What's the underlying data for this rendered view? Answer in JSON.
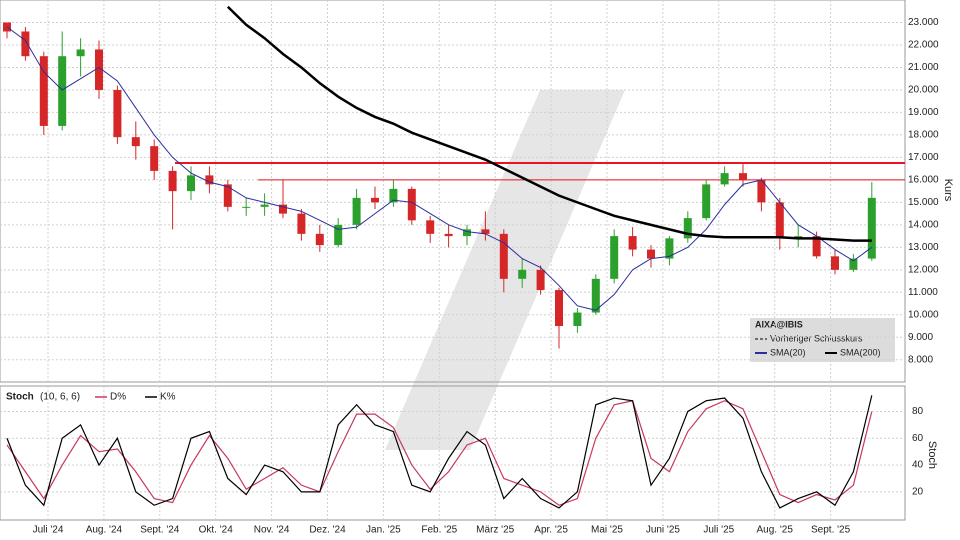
{
  "chart_data": [
    {
      "type": "candlestick",
      "ylabel": "Kurs",
      "ylim": [
        7.1,
        24
      ],
      "yticks": [
        {
          "value": 8,
          "label": "8.000"
        },
        {
          "value": 9,
          "label": "9.000"
        },
        {
          "value": 10,
          "label": "10.000"
        },
        {
          "value": 11,
          "label": "11.000"
        },
        {
          "value": 12,
          "label": "12.000"
        },
        {
          "value": 13,
          "label": "13.000"
        },
        {
          "value": 14,
          "label": "14.000"
        },
        {
          "value": 15,
          "label": "15.000"
        },
        {
          "value": 16,
          "label": "16.000"
        },
        {
          "value": 17,
          "label": "17.000"
        },
        {
          "value": 18,
          "label": "18.000"
        },
        {
          "value": 19,
          "label": "19.000"
        },
        {
          "value": 20,
          "label": "20.000"
        },
        {
          "value": 21,
          "label": "21.000"
        },
        {
          "value": 22,
          "label": "22.000"
        },
        {
          "value": 23,
          "label": "23.000"
        }
      ],
      "grid": true,
      "up_color": "#2ca02c",
      "down_color": "#d62728",
      "open": [
        23,
        22.6,
        21.5,
        18.4,
        21.5,
        21.8,
        20.0,
        17.9,
        17.5,
        16.4,
        15.5,
        16.2,
        15.8,
        14.8,
        14.8,
        14.9,
        14.5,
        13.6,
        13.1,
        14.0,
        15.2,
        15.0,
        15.6,
        14.2,
        13.6,
        13.5,
        13.8,
        13.6,
        11.6,
        12.0,
        11.1,
        9.5,
        10.1,
        11.6,
        13.5,
        12.9,
        12.5,
        13.4,
        14.3,
        15.8,
        16.3,
        16.0,
        15.0,
        13.4,
        13.5,
        12.6,
        12.0,
        12.5
      ],
      "high": [
        23,
        22.8,
        21.7,
        22.6,
        22.3,
        22.2,
        20.2,
        18.6,
        17.8,
        16.6,
        16.6,
        16.6,
        16.0,
        15.2,
        15.4,
        16.0,
        14.7,
        14.0,
        14.3,
        15.6,
        15.7,
        16.0,
        15.7,
        14.4,
        14.0,
        14.0,
        14.6,
        13.8,
        12.5,
        12.2,
        11.2,
        10.3,
        11.8,
        13.8,
        13.9,
        13.1,
        13.5,
        14.6,
        16.0,
        16.6,
        16.7,
        16.1,
        15.2,
        14.0,
        13.7,
        12.9,
        12.7,
        15.9
      ],
      "low": [
        22.3,
        21.3,
        18.0,
        18.2,
        20.6,
        19.6,
        17.6,
        16.9,
        16.0,
        13.8,
        15.1,
        15.4,
        14.6,
        14.4,
        14.4,
        14.3,
        13.3,
        12.8,
        13.0,
        13.8,
        14.7,
        14.8,
        14.0,
        13.2,
        13.0,
        13.1,
        13.3,
        11.0,
        11.2,
        10.9,
        8.5,
        9.2,
        10.0,
        11.4,
        12.6,
        12.1,
        12.2,
        13.2,
        14.2,
        15.7,
        15.7,
        14.6,
        12.9,
        13.0,
        12.5,
        11.8,
        11.9,
        12.4
      ],
      "close": [
        22.6,
        21.5,
        18.4,
        21.5,
        21.8,
        20.0,
        17.9,
        17.5,
        16.4,
        15.5,
        16.2,
        15.8,
        14.8,
        14.8,
        14.9,
        14.5,
        13.6,
        13.1,
        14.0,
        15.2,
        15.0,
        15.6,
        14.2,
        13.6,
        13.5,
        13.8,
        13.6,
        11.6,
        12.0,
        11.1,
        9.5,
        10.1,
        11.6,
        13.5,
        12.9,
        12.5,
        13.4,
        14.3,
        15.8,
        16.3,
        16.0,
        15.0,
        13.4,
        13.5,
        12.6,
        12.0,
        12.5,
        15.2
      ],
      "series": [
        {
          "name": "SMA(20)",
          "color": "#2a2f9c",
          "values": [
            22.8,
            22.2,
            20.8,
            20.0,
            20.5,
            21.0,
            20.4,
            19.2,
            18.0,
            17.0,
            16.3,
            15.9,
            15.7,
            15.2,
            15.0,
            14.8,
            14.6,
            14.2,
            13.8,
            13.9,
            14.5,
            15.1,
            15.0,
            14.5,
            14.0,
            13.7,
            13.6,
            13.2,
            12.5,
            12.1,
            11.3,
            10.4,
            10.2,
            10.9,
            12.0,
            12.5,
            12.6,
            13.0,
            13.8,
            14.9,
            15.8,
            16.0,
            15.0,
            14.0,
            13.5,
            12.9,
            12.4,
            13.0
          ]
        },
        {
          "name": "SMA(200)",
          "color": "#000000",
          "values": [
            null,
            null,
            null,
            null,
            null,
            null,
            null,
            null,
            null,
            null,
            null,
            null,
            23.7,
            22.9,
            22.3,
            21.6,
            21.0,
            20.3,
            19.7,
            19.2,
            18.8,
            18.5,
            18.1,
            17.8,
            17.5,
            17.2,
            16.9,
            16.5,
            16.1,
            15.7,
            15.3,
            15.0,
            14.7,
            14.4,
            14.2,
            14.0,
            13.8,
            13.6,
            13.5,
            13.45,
            13.45,
            13.45,
            13.45,
            13.4,
            13.4,
            13.35,
            13.3,
            13.3
          ]
        }
      ],
      "hlines": [
        {
          "value": 16.75,
          "color": "#e8141e"
        },
        {
          "value": 16.0,
          "color": "#e8141e"
        }
      ],
      "legend": {
        "title": "AIXA@IBIS",
        "extra": "Vorheriger Schlusskurs"
      }
    },
    {
      "type": "line",
      "title": "Stoch",
      "subtitle": "(10, 6, 6)",
      "ylabel": "Stoch",
      "ylim": [
        -1,
        99
      ],
      "yticks": [
        20,
        40,
        60,
        80
      ],
      "grid": true,
      "x_labels": [
        "Juli '24",
        "Aug. '24",
        "Sept. '24",
        "Okt. '24",
        "Nov. '24",
        "Dez. '24",
        "Jan. '25",
        "Feb. '25",
        "März '25",
        "Apr. '25",
        "Mai '25",
        "Juni '25",
        "Juli '25",
        "Aug. '25",
        "Sept. '25"
      ],
      "series": [
        {
          "name": "D%",
          "color": "#c8385a",
          "values": [
            55,
            35,
            15,
            40,
            62,
            50,
            52,
            35,
            15,
            12,
            40,
            62,
            45,
            22,
            30,
            38,
            25,
            20,
            50,
            78,
            78,
            68,
            40,
            22,
            35,
            55,
            60,
            30,
            25,
            20,
            10,
            15,
            60,
            85,
            88,
            45,
            35,
            65,
            82,
            88,
            82,
            50,
            18,
            12,
            18,
            14,
            25,
            80
          ]
        },
        {
          "name": "K%",
          "color": "#000000",
          "values": [
            60,
            25,
            10,
            60,
            70,
            40,
            60,
            20,
            10,
            15,
            60,
            65,
            30,
            18,
            40,
            35,
            20,
            20,
            70,
            85,
            70,
            65,
            25,
            20,
            45,
            65,
            55,
            15,
            30,
            15,
            8,
            20,
            85,
            90,
            88,
            25,
            45,
            80,
            88,
            90,
            75,
            35,
            8,
            15,
            20,
            10,
            35,
            92
          ]
        }
      ]
    }
  ]
}
